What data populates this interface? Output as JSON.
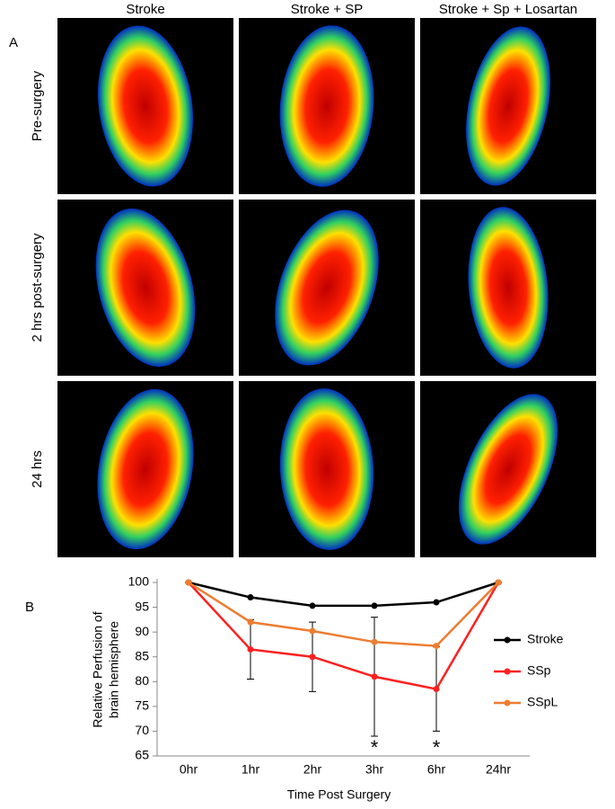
{
  "figure": {
    "panel_a": {
      "label": "A",
      "columns": [
        "Stroke",
        "Stroke + SP",
        "Stroke + Sp + Losartan"
      ],
      "rows": [
        "Pre-surgery",
        "2 hrs post-surgery",
        "24 hrs"
      ]
    },
    "panel_b_label": "B"
  },
  "chart_data": {
    "type": "line",
    "ylabel": [
      "Relative Perfusion of",
      "brain hemisphere"
    ],
    "xlabel": "Time Post Surgery",
    "categories": [
      "0hr",
      "1hr",
      "2hr",
      "3hr",
      "6hr",
      "24hr"
    ],
    "series": [
      {
        "name": "Stroke",
        "color": "#000000",
        "values": [
          100,
          97,
          95.3,
          95.3,
          96,
          100
        ]
      },
      {
        "name": "SSp",
        "color": "#ff2020",
        "values": [
          100,
          86.5,
          85,
          81,
          78.5,
          100
        ],
        "errors": [
          0,
          6,
          7,
          12,
          8.5,
          0
        ]
      },
      {
        "name": "SSpL",
        "color": "#ed7d31",
        "values": [
          100,
          92,
          90.2,
          88,
          87.2,
          100
        ]
      }
    ],
    "ylim": [
      65,
      100
    ],
    "yticks": [
      65,
      70,
      75,
      80,
      85,
      90,
      95,
      100
    ],
    "annotations": [
      {
        "text": "*",
        "x": "3hr"
      },
      {
        "text": "*",
        "x": "6hr"
      }
    ],
    "legend": "right"
  }
}
